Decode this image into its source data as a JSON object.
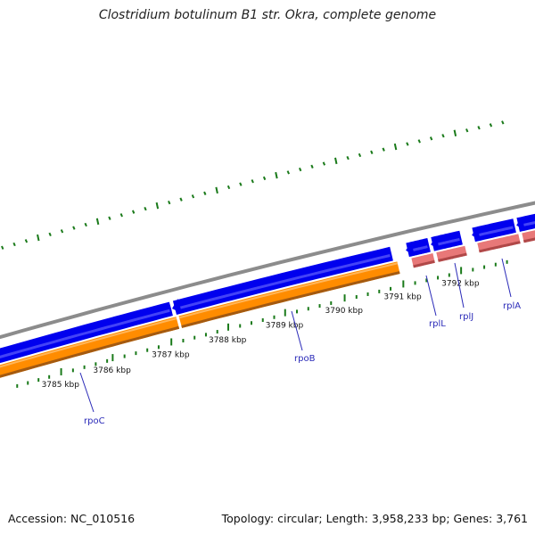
{
  "title": "Clostridium botulinum B1 str. Okra, complete genome",
  "accession": "Accession: NC_010516",
  "summary": "Topology: circular; Length: 3,958,233 bp; Genes: 3,761",
  "colors": {
    "backbone": "#8c8c8c",
    "cds_forward": "#0000ee",
    "cds_forward_light": "#7a7aff",
    "gene_track": "#ff8c00",
    "gene_track_dark": "#a45a10",
    "gene_track_light": "#ffc070",
    "rrna_track": "#e87878",
    "rrna_track_dark": "#b04848",
    "gc_ticks": "#1a7a1a",
    "label_line": "#2a2ab8"
  },
  "scale_labels": [
    "3785 kbp",
    "3786 kbp",
    "3787 kbp",
    "3788 kbp",
    "3789 kbp",
    "3790 kbp",
    "3791 kbp",
    "3792 kbp"
  ],
  "genes": [
    {
      "name": "rpoC"
    },
    {
      "name": "rpoB"
    },
    {
      "name": "rplL"
    },
    {
      "name": "rplJ"
    },
    {
      "name": "rplA"
    }
  ]
}
